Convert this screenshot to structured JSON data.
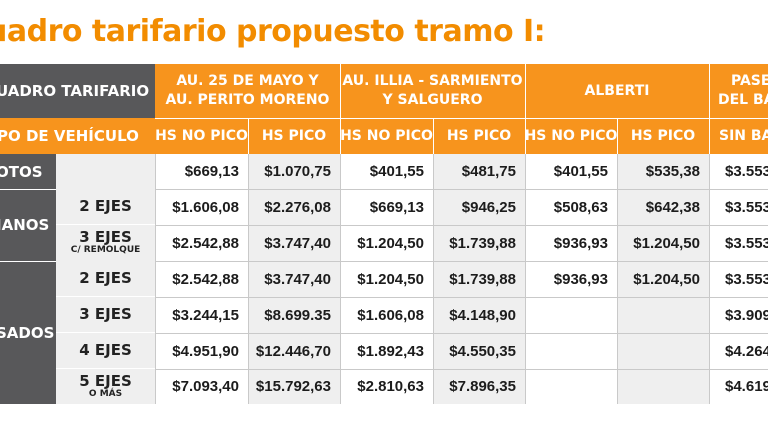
{
  "title": "uadro tarifario propuesto tramo I:",
  "table": {
    "corner_label": "UADRO TARIFARIO",
    "vehicle_label": "PO DE VEHÍCULO",
    "groups": [
      {
        "label_1": "AU. 25 DE MAYO Y",
        "label_2": "AU. PERITO MORENO"
      },
      {
        "label_1": "AU. ILLIA - SARMIENTO",
        "label_2": "Y SALGUERO"
      },
      {
        "label_1": "ALBERTI",
        "label_2": ""
      },
      {
        "label_1": "PASE",
        "label_2": "DEL BA"
      }
    ],
    "subheaders": [
      "HS NO PICO",
      "HS PICO",
      "HS NO PICO",
      "HS PICO",
      "HS NO PICO",
      "HS PICO",
      "SIN BAR"
    ],
    "categories": [
      {
        "label": "OTOS",
        "axles": []
      },
      {
        "label": "IANOS",
        "axles": [
          {
            "main": "2 EJES",
            "note": ""
          },
          {
            "main": "3 EJES",
            "note": "C/ REMOLQUE"
          }
        ]
      },
      {
        "label": "SADOS",
        "axles": [
          {
            "main": "2 EJES",
            "note": ""
          },
          {
            "main": "3 EJES",
            "note": ""
          },
          {
            "main": "4 EJES",
            "note": ""
          },
          {
            "main": "5 EJES",
            "note": "O MÁS"
          }
        ]
      }
    ],
    "rows": [
      [
        "$669,13",
        "$1.070,75",
        "$401,55",
        "$481,75",
        "$401,55",
        "$535,38",
        "$3.553"
      ],
      [
        "$1.606,08",
        "$2.276,08",
        "$669,13",
        "$946,25",
        "$508,63",
        "$642,38",
        "$3.553"
      ],
      [
        "$2.542,88",
        "$3.747,40",
        "$1.204,50",
        "$1.739,88",
        "$936,93",
        "$1.204,50",
        "$3.553"
      ],
      [
        "$2.542,88",
        "$3.747,40",
        "$1.204,50",
        "$1.739,88",
        "$936,93",
        "$1.204,50",
        "$3.553"
      ],
      [
        "$3.244,15",
        "$8.699.35",
        "$1.606,08",
        "$4.148,90",
        "",
        "",
        "$3.909"
      ],
      [
        "$4.951,90",
        "$12.446,70",
        "$1.892,43",
        "$4.550,35",
        "",
        "",
        "$4.264"
      ],
      [
        "$7.093,40",
        "$15.792,63",
        "$2.810,63",
        "$7.896,35",
        "",
        "",
        "$4.619"
      ]
    ]
  },
  "colors": {
    "accent": "#f7941d",
    "title": "#f28c00",
    "dark": "#58585a",
    "stripe": "#efefef"
  }
}
